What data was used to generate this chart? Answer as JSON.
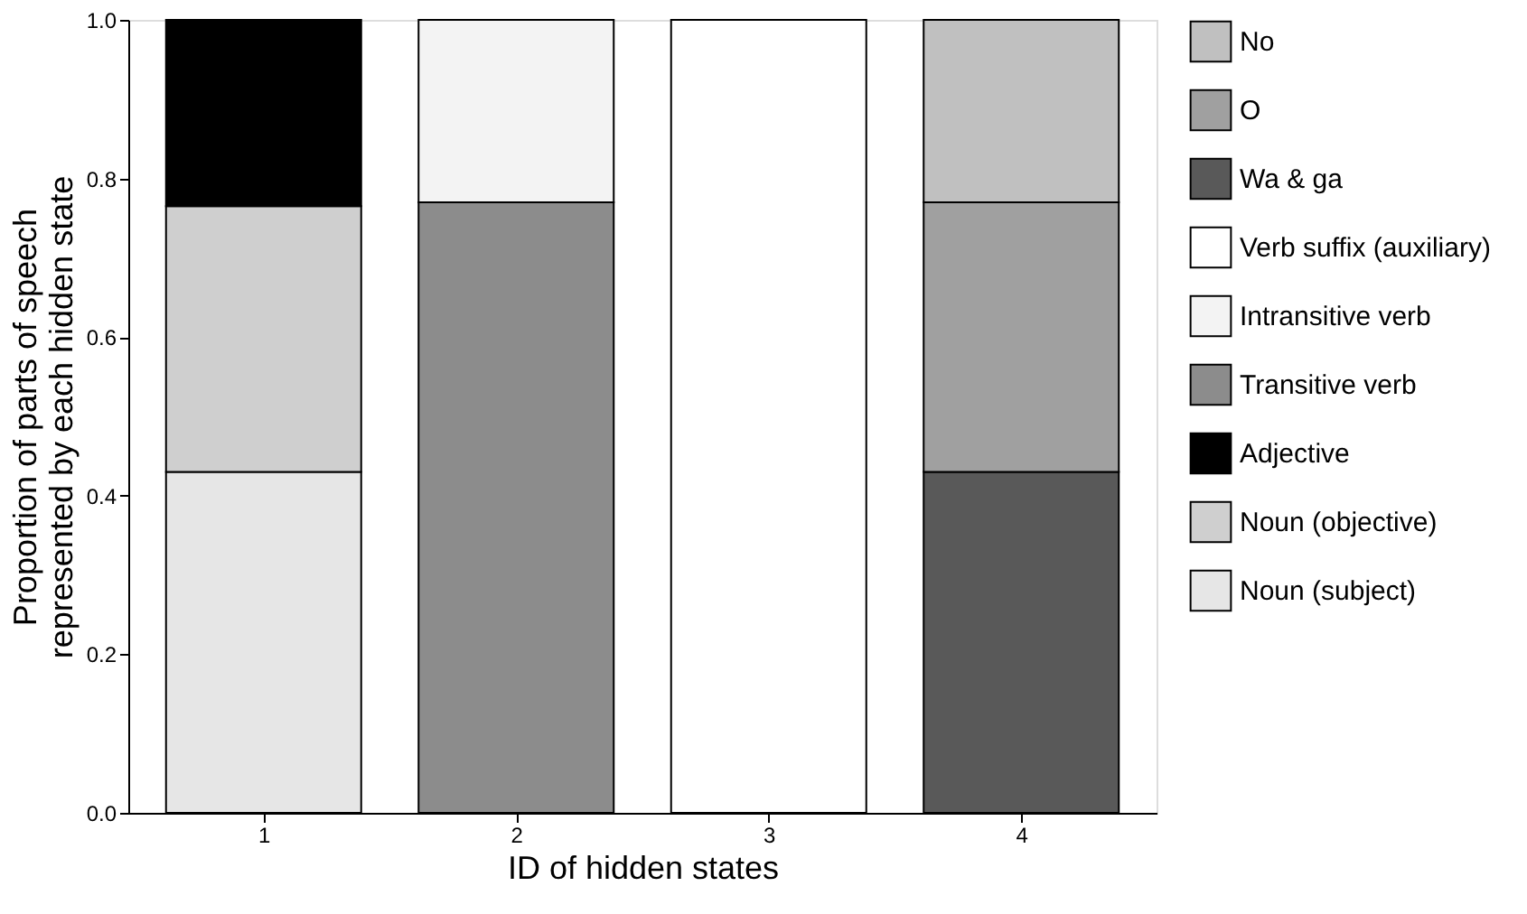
{
  "chart_data": {
    "type": "bar",
    "stacked": true,
    "xlabel": "ID of hidden states",
    "ylabel": "Proportion of parts of speech\nrepresented by each hidden state",
    "categories": [
      "1",
      "2",
      "3",
      "4"
    ],
    "ylim": [
      0,
      1
    ],
    "yticks": [
      {
        "value": 0,
        "label": "0.0"
      },
      {
        "value": 0.2,
        "label": "0.2"
      },
      {
        "value": 0.4,
        "label": "0.4"
      },
      {
        "value": 0.6,
        "label": "0.6"
      },
      {
        "value": 0.8,
        "label": "0.8"
      },
      {
        "value": 1,
        "label": "1.0"
      }
    ],
    "grid": false,
    "legend": "right",
    "series": [
      {
        "name": "Noun (subject)",
        "color": "#e6e6e6",
        "values": [
          0.43,
          null,
          null,
          null
        ]
      },
      {
        "name": "Noun (objective)",
        "color": "#cfcfcf",
        "values": [
          0.335,
          null,
          null,
          null
        ]
      },
      {
        "name": "Adjective",
        "color": "#000000",
        "values": [
          0.235,
          null,
          null,
          null
        ]
      },
      {
        "name": "Transitive verb",
        "color": "#8c8c8c",
        "values": [
          null,
          0.77,
          null,
          null
        ]
      },
      {
        "name": "Intransitive verb",
        "color": "#f3f3f3",
        "values": [
          null,
          0.23,
          null,
          null
        ]
      },
      {
        "name": "Verb suffix (auxiliary)",
        "color": "#ffffff",
        "values": [
          null,
          null,
          1.0,
          null
        ]
      },
      {
        "name": "Wa & ga",
        "color": "#595959",
        "values": [
          null,
          null,
          null,
          0.43
        ]
      },
      {
        "name": "O",
        "color": "#a0a0a0",
        "values": [
          null,
          null,
          null,
          0.34
        ]
      },
      {
        "name": "No",
        "color": "#c0c0c0",
        "values": [
          null,
          null,
          null,
          0.23
        ]
      }
    ]
  }
}
